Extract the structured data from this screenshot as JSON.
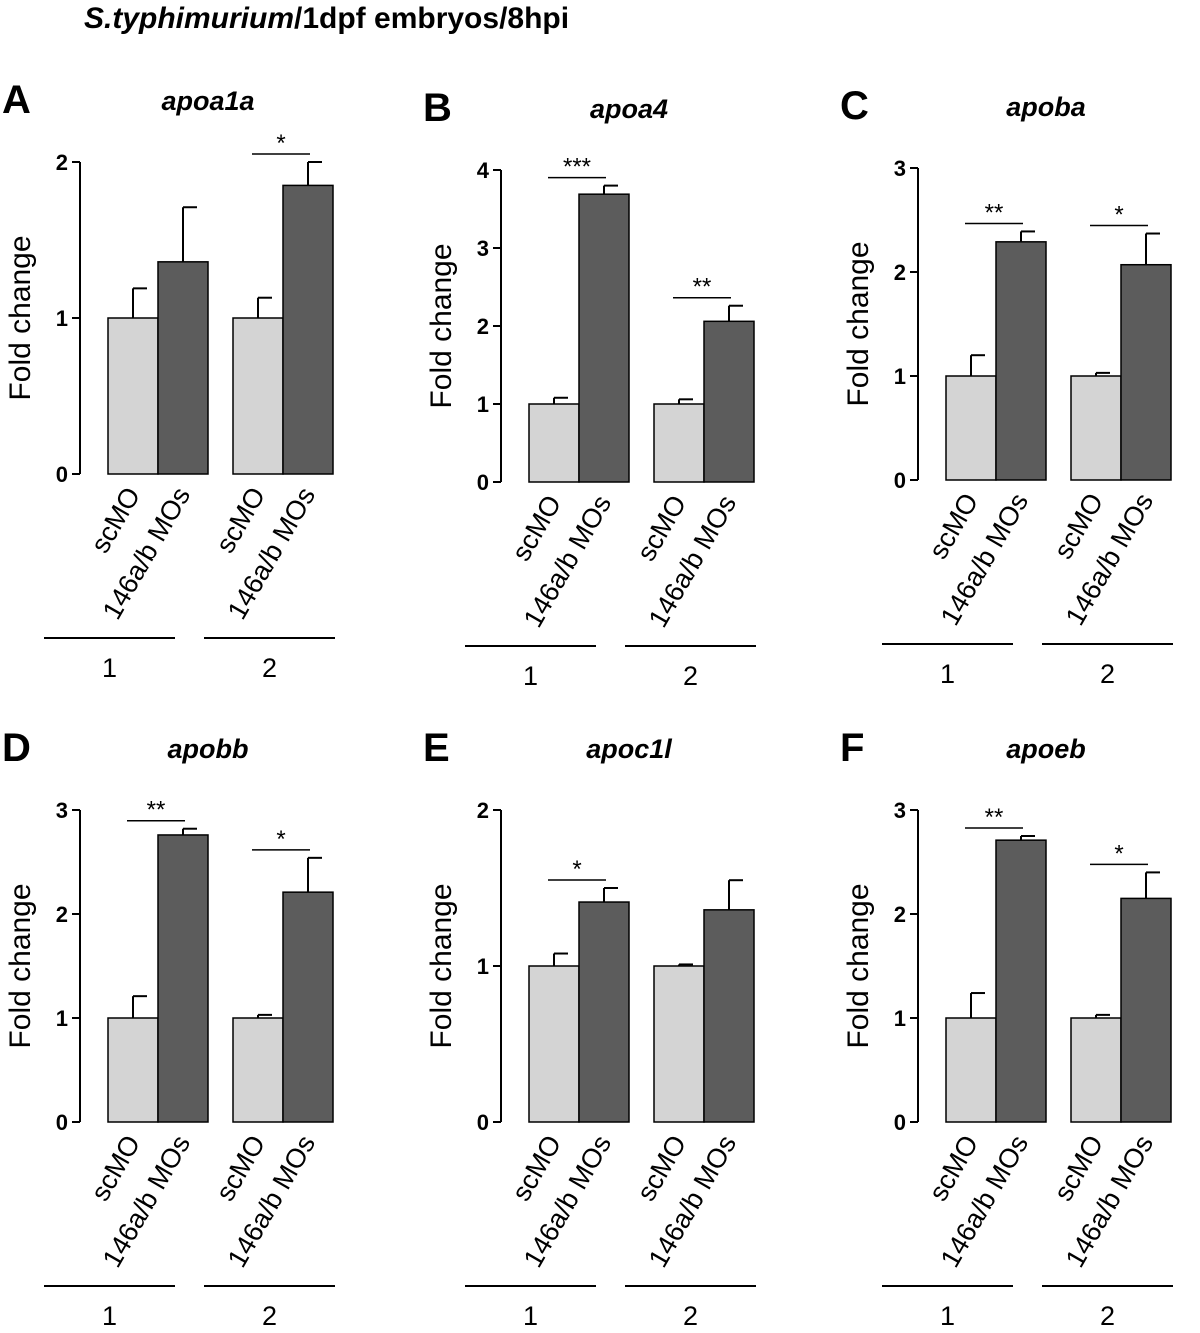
{
  "figure": {
    "title_italic": "S.typhimurium",
    "title_rest": "/1dpf embryos/8hpi",
    "ylabel": "Fold change",
    "bar_labels": [
      "scMO",
      "146a/b MOs"
    ],
    "group_labels": [
      "1",
      "2"
    ],
    "colors": {
      "control": "#d4d4d4",
      "treated": "#5c5c5c",
      "stroke": "#000000"
    }
  },
  "chart_data": [
    {
      "type": "bar",
      "panel": "A",
      "title": "apoa1a",
      "ylabel": "Fold change",
      "ylim": [
        0,
        2
      ],
      "yticks": [
        "0",
        "1",
        "2"
      ],
      "ytick_values": [
        0,
        1,
        2
      ],
      "groups": [
        "1",
        "2"
      ],
      "series_labels": [
        "scMO",
        "146a/b MOs"
      ],
      "values": [
        [
          1.0,
          1.36
        ],
        [
          1.0,
          1.85
        ]
      ],
      "errors": [
        [
          0.19,
          0.35
        ],
        [
          0.13,
          0.15
        ]
      ],
      "significance": [
        "",
        "*"
      ]
    },
    {
      "type": "bar",
      "panel": "B",
      "title": "apoa4",
      "ylabel": "Fold change",
      "ylim": [
        0,
        4
      ],
      "yticks": [
        "0",
        "1",
        "2",
        "3",
        "4"
      ],
      "ytick_values": [
        0,
        1,
        2,
        3,
        4
      ],
      "groups": [
        "1",
        "2"
      ],
      "series_labels": [
        "scMO",
        "146a/b MOs"
      ],
      "values": [
        [
          1.0,
          3.69
        ],
        [
          1.0,
          2.06
        ]
      ],
      "errors": [
        [
          0.08,
          0.11
        ],
        [
          0.06,
          0.2
        ]
      ],
      "significance": [
        "***",
        "**"
      ]
    },
    {
      "type": "bar",
      "panel": "C",
      "title": "apoba",
      "ylabel": "Fold change",
      "ylim": [
        0,
        3
      ],
      "yticks": [
        "0",
        "1",
        "2",
        "3"
      ],
      "ytick_values": [
        0,
        1,
        2,
        3
      ],
      "groups": [
        "1",
        "2"
      ],
      "series_labels": [
        "scMO",
        "146a/b MOs"
      ],
      "values": [
        [
          1.0,
          2.29
        ],
        [
          1.0,
          2.07
        ]
      ],
      "errors": [
        [
          0.2,
          0.1
        ],
        [
          0.03,
          0.3
        ]
      ],
      "significance": [
        "**",
        "*"
      ]
    },
    {
      "type": "bar",
      "panel": "D",
      "title": "apobb",
      "ylabel": "Fold change",
      "ylim": [
        0,
        3
      ],
      "yticks": [
        "0",
        "1",
        "2",
        "3"
      ],
      "ytick_values": [
        0,
        1,
        2,
        3
      ],
      "groups": [
        "1",
        "2"
      ],
      "series_labels": [
        "scMO",
        "146a/b MOs"
      ],
      "values": [
        [
          1.0,
          2.76
        ],
        [
          1.0,
          2.21
        ]
      ],
      "errors": [
        [
          0.21,
          0.06
        ],
        [
          0.03,
          0.33
        ]
      ],
      "significance": [
        "**",
        "*"
      ]
    },
    {
      "type": "bar",
      "panel": "E",
      "title": "apoc1l",
      "ylabel": "Fold change",
      "ylim": [
        0,
        2
      ],
      "yticks": [
        "0",
        "1",
        "2"
      ],
      "ytick_values": [
        0,
        1,
        2
      ],
      "groups": [
        "1",
        "2"
      ],
      "series_labels": [
        "scMO",
        "146a/b MOs"
      ],
      "values": [
        [
          1.0,
          1.41
        ],
        [
          1.0,
          1.36
        ]
      ],
      "errors": [
        [
          0.08,
          0.09
        ],
        [
          0.01,
          0.19
        ]
      ],
      "significance": [
        "*",
        ""
      ]
    },
    {
      "type": "bar",
      "panel": "F",
      "title": "apoeb",
      "ylabel": "Fold change",
      "ylim": [
        0,
        3
      ],
      "yticks": [
        "0",
        "1",
        "2",
        "3"
      ],
      "ytick_values": [
        0,
        1,
        2,
        3
      ],
      "groups": [
        "1",
        "2"
      ],
      "series_labels": [
        "scMO",
        "146a/b MOs"
      ],
      "values": [
        [
          1.0,
          2.71
        ],
        [
          1.0,
          2.15
        ]
      ],
      "errors": [
        [
          0.24,
          0.04
        ],
        [
          0.03,
          0.25
        ]
      ],
      "significance": [
        "**",
        "*"
      ]
    }
  ]
}
